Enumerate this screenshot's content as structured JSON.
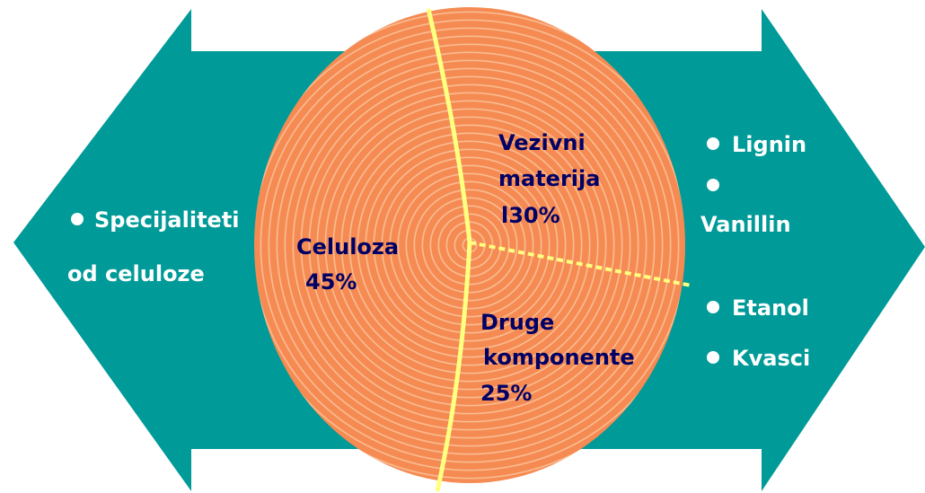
{
  "left": {
    "lines": [
      "Specijaliteti",
      "od celuloze"
    ]
  },
  "pie": {
    "celuloza": {
      "lines": [
        "Celuloza",
        "45%"
      ]
    },
    "vezivni": {
      "lines": [
        "Vezivni",
        "materija",
        "l30%"
      ]
    },
    "druge": {
      "lines": [
        "Druge",
        "komponente",
        "25%"
      ]
    }
  },
  "right": {
    "items": [
      "Lignin",
      "Vanillin",
      "Etanol",
      "Kvasci"
    ]
  }
}
